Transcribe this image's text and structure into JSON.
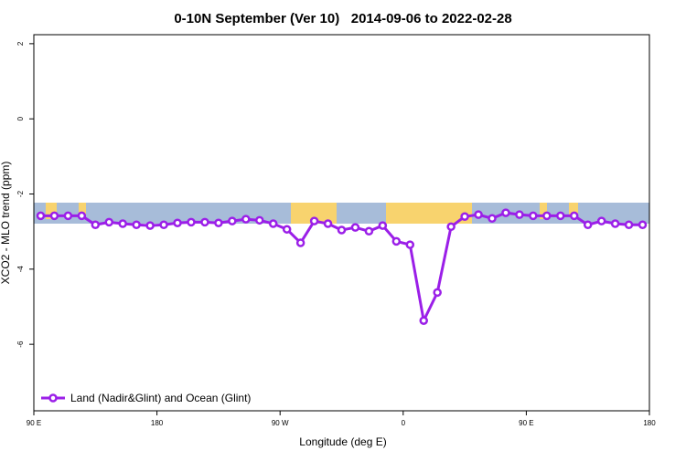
{
  "chart_data": {
    "type": "line",
    "title": "0-10N September (Ver 10)   2014-09-06 to 2022-02-28",
    "x_label": "Longitude (deg E)",
    "y_label": "XCO2 - MLO trend (ppm)",
    "x": [
      95,
      105,
      115,
      125,
      135,
      145,
      155,
      165,
      175,
      185,
      195,
      205,
      215,
      225,
      235,
      245,
      255,
      265,
      275,
      285,
      295,
      305,
      315,
      325,
      335,
      345,
      355,
      365,
      375,
      385,
      395,
      405,
      415,
      425,
      435,
      445,
      455,
      465,
      475,
      485,
      495,
      505,
      515,
      525,
      535
    ],
    "series": [
      {
        "name": "Land (Nadir&Glint) and Ocean (Glint)",
        "color": "#9b1fe8",
        "values": [
          -2.58,
          -2.58,
          -2.58,
          -2.58,
          -2.82,
          -2.75,
          -2.79,
          -2.82,
          -2.84,
          -2.82,
          -2.77,
          -2.75,
          -2.75,
          -2.77,
          -2.72,
          -2.67,
          -2.7,
          -2.79,
          -2.94,
          -3.3,
          -2.72,
          -2.79,
          -2.96,
          -2.89,
          -2.99,
          -2.84,
          -3.26,
          -3.35,
          -5.37,
          -4.62,
          -2.87,
          -2.6,
          -2.55,
          -2.65,
          -2.5,
          -2.55,
          -2.58,
          -2.58,
          -2.58,
          -2.58,
          -2.82,
          -2.72,
          -2.79,
          -2.82,
          -2.82
        ]
      }
    ],
    "xlim": [
      90,
      540
    ],
    "xticks": [
      {
        "value": 90,
        "label": "90 E"
      },
      180,
      {
        "value": 270,
        "label": "90 W"
      },
      {
        "value": 360,
        "label": "0"
      },
      {
        "value": 450,
        "label": "90 E"
      },
      {
        "value": 540,
        "label": "180"
      }
    ],
    "ylim": [
      -7.77,
      2.24
    ],
    "yticks": [
      2,
      0,
      -2,
      -4,
      -6
    ],
    "legend": "bottom left"
  }
}
